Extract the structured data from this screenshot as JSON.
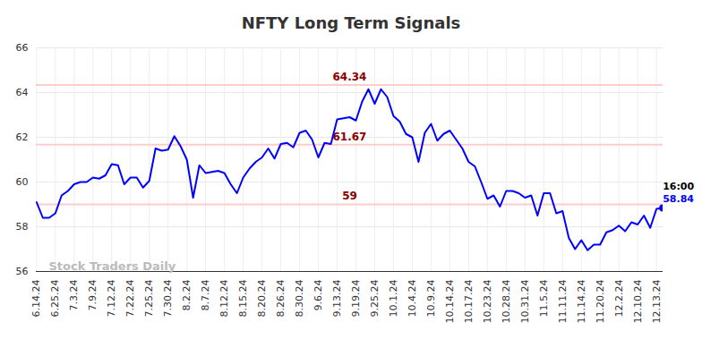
{
  "chart_data": {
    "type": "line",
    "title": "NFTY Long Term Signals",
    "color": "#0000ff",
    "grid": true,
    "categories": [
      "6.14.24",
      null,
      null,
      "6.25.24",
      null,
      null,
      "7.3.24",
      null,
      null,
      "7.9.24",
      null,
      null,
      "7.12.24",
      null,
      null,
      "7.22.24",
      null,
      null,
      "7.25.24",
      null,
      null,
      "7.30.24",
      null,
      null,
      "8.2.24",
      null,
      null,
      "8.7.24",
      null,
      null,
      "8.12.24",
      null,
      null,
      "8.15.24",
      null,
      null,
      "8.20.24",
      null,
      null,
      "8.26.24",
      null,
      null,
      "8.30.24",
      null,
      null,
      "9.6.24",
      null,
      null,
      "9.13.24",
      null,
      null,
      "9.19.24",
      null,
      null,
      "9.25.24",
      null,
      null,
      "10.1.24",
      null,
      null,
      "10.4.24",
      null,
      null,
      "10.9.24",
      null,
      null,
      "10.14.24",
      null,
      null,
      "10.17.24",
      null,
      null,
      "10.23.24",
      null,
      null,
      "10.28.24",
      null,
      null,
      "10.31.24",
      null,
      null,
      "11.5.24",
      null,
      null,
      "11.11.24",
      null,
      null,
      "11.14.24",
      null,
      null,
      "11.20.24",
      null,
      null,
      "12.2.24",
      null,
      null,
      "12.10.24",
      null,
      null,
      "12.13.24",
      null
    ],
    "values": [
      59.1,
      58.4,
      58.4,
      58.6,
      59.4,
      59.6,
      59.9,
      60.0,
      60.0,
      60.2,
      60.15,
      60.3,
      60.8,
      60.75,
      59.9,
      60.2,
      60.2,
      59.75,
      60.05,
      61.5,
      61.4,
      61.45,
      62.05,
      61.6,
      61.0,
      59.3,
      60.75,
      60.4,
      60.45,
      60.5,
      60.4,
      59.9,
      59.5,
      60.2,
      60.6,
      60.9,
      61.1,
      61.5,
      61.05,
      61.7,
      61.75,
      61.55,
      62.2,
      62.3,
      61.9,
      61.1,
      61.75,
      61.7,
      62.8,
      62.85,
      62.9,
      62.75,
      63.6,
      64.15,
      63.5,
      64.15,
      63.8,
      62.95,
      62.7,
      62.15,
      62.0,
      60.9,
      62.2,
      62.6,
      61.85,
      62.15,
      62.3,
      61.9,
      61.5,
      60.9,
      60.7,
      60.0,
      59.25,
      59.4,
      58.9,
      59.6,
      59.6,
      59.5,
      59.3,
      59.4,
      58.5,
      59.5,
      59.5,
      58.6,
      58.7,
      57.5,
      57.0,
      57.4,
      56.95,
      57.2,
      57.2,
      57.75,
      57.85,
      58.05,
      57.8,
      58.2,
      58.1,
      58.5,
      57.95,
      58.8,
      58.84
    ],
    "ylim": [
      56,
      66
    ],
    "yticks": [
      56,
      58,
      60,
      62,
      64,
      66
    ],
    "levels": [
      64.34,
      61.67,
      59
    ],
    "last_point_time": "16:00",
    "watermark": "Stock Traders Daily"
  }
}
